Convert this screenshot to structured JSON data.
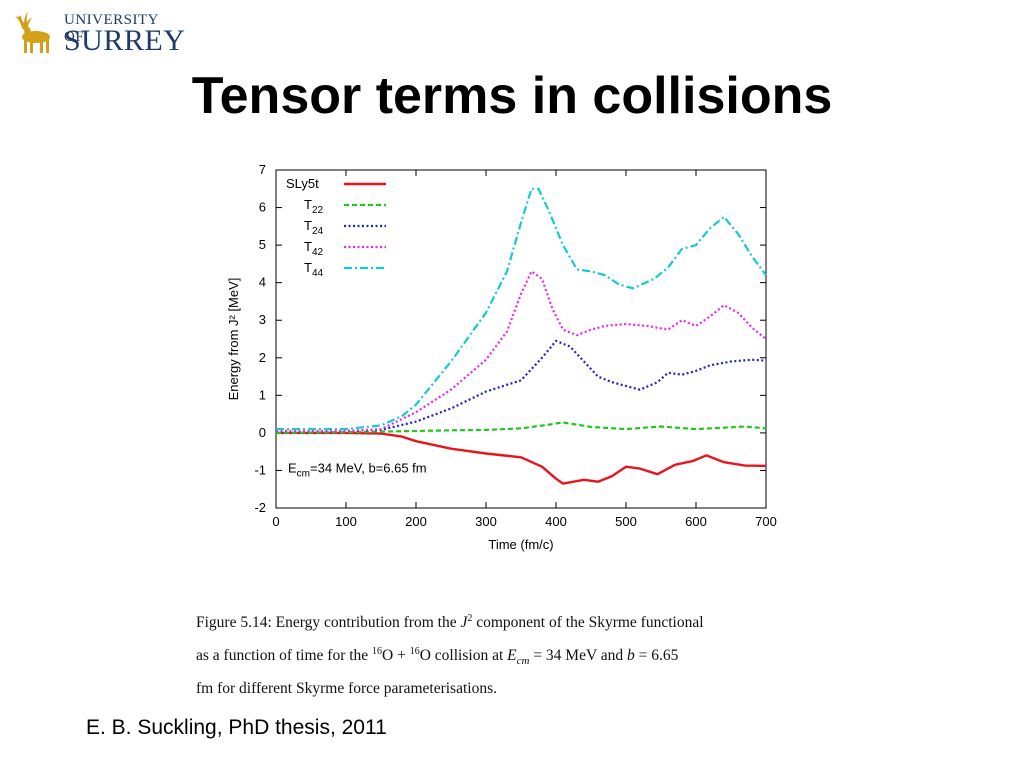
{
  "header": {
    "logo": {
      "line1": "UNIVERSITY OF",
      "line2": "SURREY",
      "icon": "stag-icon"
    },
    "title": "Tensor terms in collisions"
  },
  "chart_data": {
    "type": "line",
    "xlabel": "Time (fm/c)",
    "ylabel": "Energy from J² [MeV]",
    "xlim": [
      0,
      700
    ],
    "ylim": [
      -2,
      7
    ],
    "xticks": [
      0,
      100,
      200,
      300,
      400,
      500,
      600,
      700
    ],
    "yticks": [
      -2,
      -1,
      0,
      1,
      2,
      3,
      4,
      5,
      6,
      7
    ],
    "grid": false,
    "legend": {
      "placement": "top-left"
    },
    "annotation": "E_cm=34 MeV, b=6.65 fm",
    "series": [
      {
        "name": "SLy5t",
        "color": "#e8141e",
        "style": "solid",
        "x": [
          0,
          50,
          100,
          150,
          180,
          200,
          250,
          300,
          350,
          380,
          400,
          410,
          425,
          440,
          460,
          480,
          500,
          520,
          545,
          570,
          595,
          615,
          640,
          670,
          700
        ],
        "y": [
          0,
          0,
          0,
          -0.02,
          -0.1,
          -0.22,
          -0.42,
          -0.55,
          -0.65,
          -0.9,
          -1.22,
          -1.35,
          -1.3,
          -1.25,
          -1.3,
          -1.15,
          -0.9,
          -0.95,
          -1.1,
          -0.85,
          -0.75,
          -0.6,
          -0.78,
          -0.87,
          -0.88
        ]
      },
      {
        "name": "T22",
        "color": "#1ec81e",
        "style": "dashed",
        "x": [
          0,
          100,
          200,
          250,
          300,
          350,
          390,
          410,
          450,
          500,
          550,
          600,
          650,
          670,
          700
        ],
        "y": [
          0,
          0.02,
          0.05,
          0.07,
          0.08,
          0.12,
          0.22,
          0.28,
          0.16,
          0.1,
          0.17,
          0.1,
          0.15,
          0.17,
          0.12
        ]
      },
      {
        "name": "T24",
        "color": "#2020c8",
        "style": "dotted",
        "x": [
          0,
          50,
          100,
          150,
          200,
          250,
          300,
          350,
          380,
          400,
          420,
          440,
          460,
          480,
          520,
          545,
          560,
          580,
          600,
          620,
          650,
          680,
          700
        ],
        "y": [
          0.05,
          0.05,
          0.05,
          0.08,
          0.3,
          0.65,
          1.1,
          1.4,
          2.0,
          2.45,
          2.3,
          1.9,
          1.5,
          1.35,
          1.15,
          1.35,
          1.6,
          1.55,
          1.65,
          1.8,
          1.9,
          1.95,
          1.92
        ]
      },
      {
        "name": "T42",
        "color": "#ee22ee",
        "style": "dotted",
        "x": [
          0,
          50,
          100,
          150,
          200,
          250,
          300,
          330,
          350,
          365,
          380,
          395,
          410,
          430,
          450,
          470,
          500,
          530,
          560,
          580,
          600,
          620,
          640,
          660,
          680,
          700
        ],
        "y": [
          0.05,
          0.05,
          0.05,
          0.1,
          0.55,
          1.15,
          1.95,
          2.7,
          3.7,
          4.3,
          4.1,
          3.3,
          2.75,
          2.6,
          2.75,
          2.85,
          2.9,
          2.85,
          2.75,
          3.0,
          2.85,
          3.1,
          3.4,
          3.2,
          2.8,
          2.5
        ]
      },
      {
        "name": "T44",
        "color": "#14c8d8",
        "style": "dashdot",
        "x": [
          0,
          50,
          100,
          150,
          180,
          200,
          250,
          300,
          330,
          350,
          365,
          375,
          390,
          410,
          430,
          450,
          470,
          490,
          510,
          540,
          560,
          580,
          600,
          620,
          640,
          660,
          680,
          700
        ],
        "y": [
          0.1,
          0.1,
          0.1,
          0.2,
          0.45,
          0.75,
          1.9,
          3.2,
          4.3,
          5.6,
          6.5,
          6.5,
          5.9,
          5.0,
          4.35,
          4.3,
          4.2,
          3.95,
          3.85,
          4.1,
          4.4,
          4.9,
          5.0,
          5.45,
          5.75,
          5.3,
          4.7,
          4.2
        ]
      }
    ]
  },
  "caption": {
    "line1": "Figure 5.14: Energy contribution from the J² component of the Skyrme functional",
    "line2": "as a function of time for the ¹⁶O + ¹⁶O collision at E_cm = 34 MeV and b = 6.65",
    "line3": "fm for different Skyrme force parameterisations."
  },
  "citation": "E. B. Suckling, PhD thesis, 2011"
}
